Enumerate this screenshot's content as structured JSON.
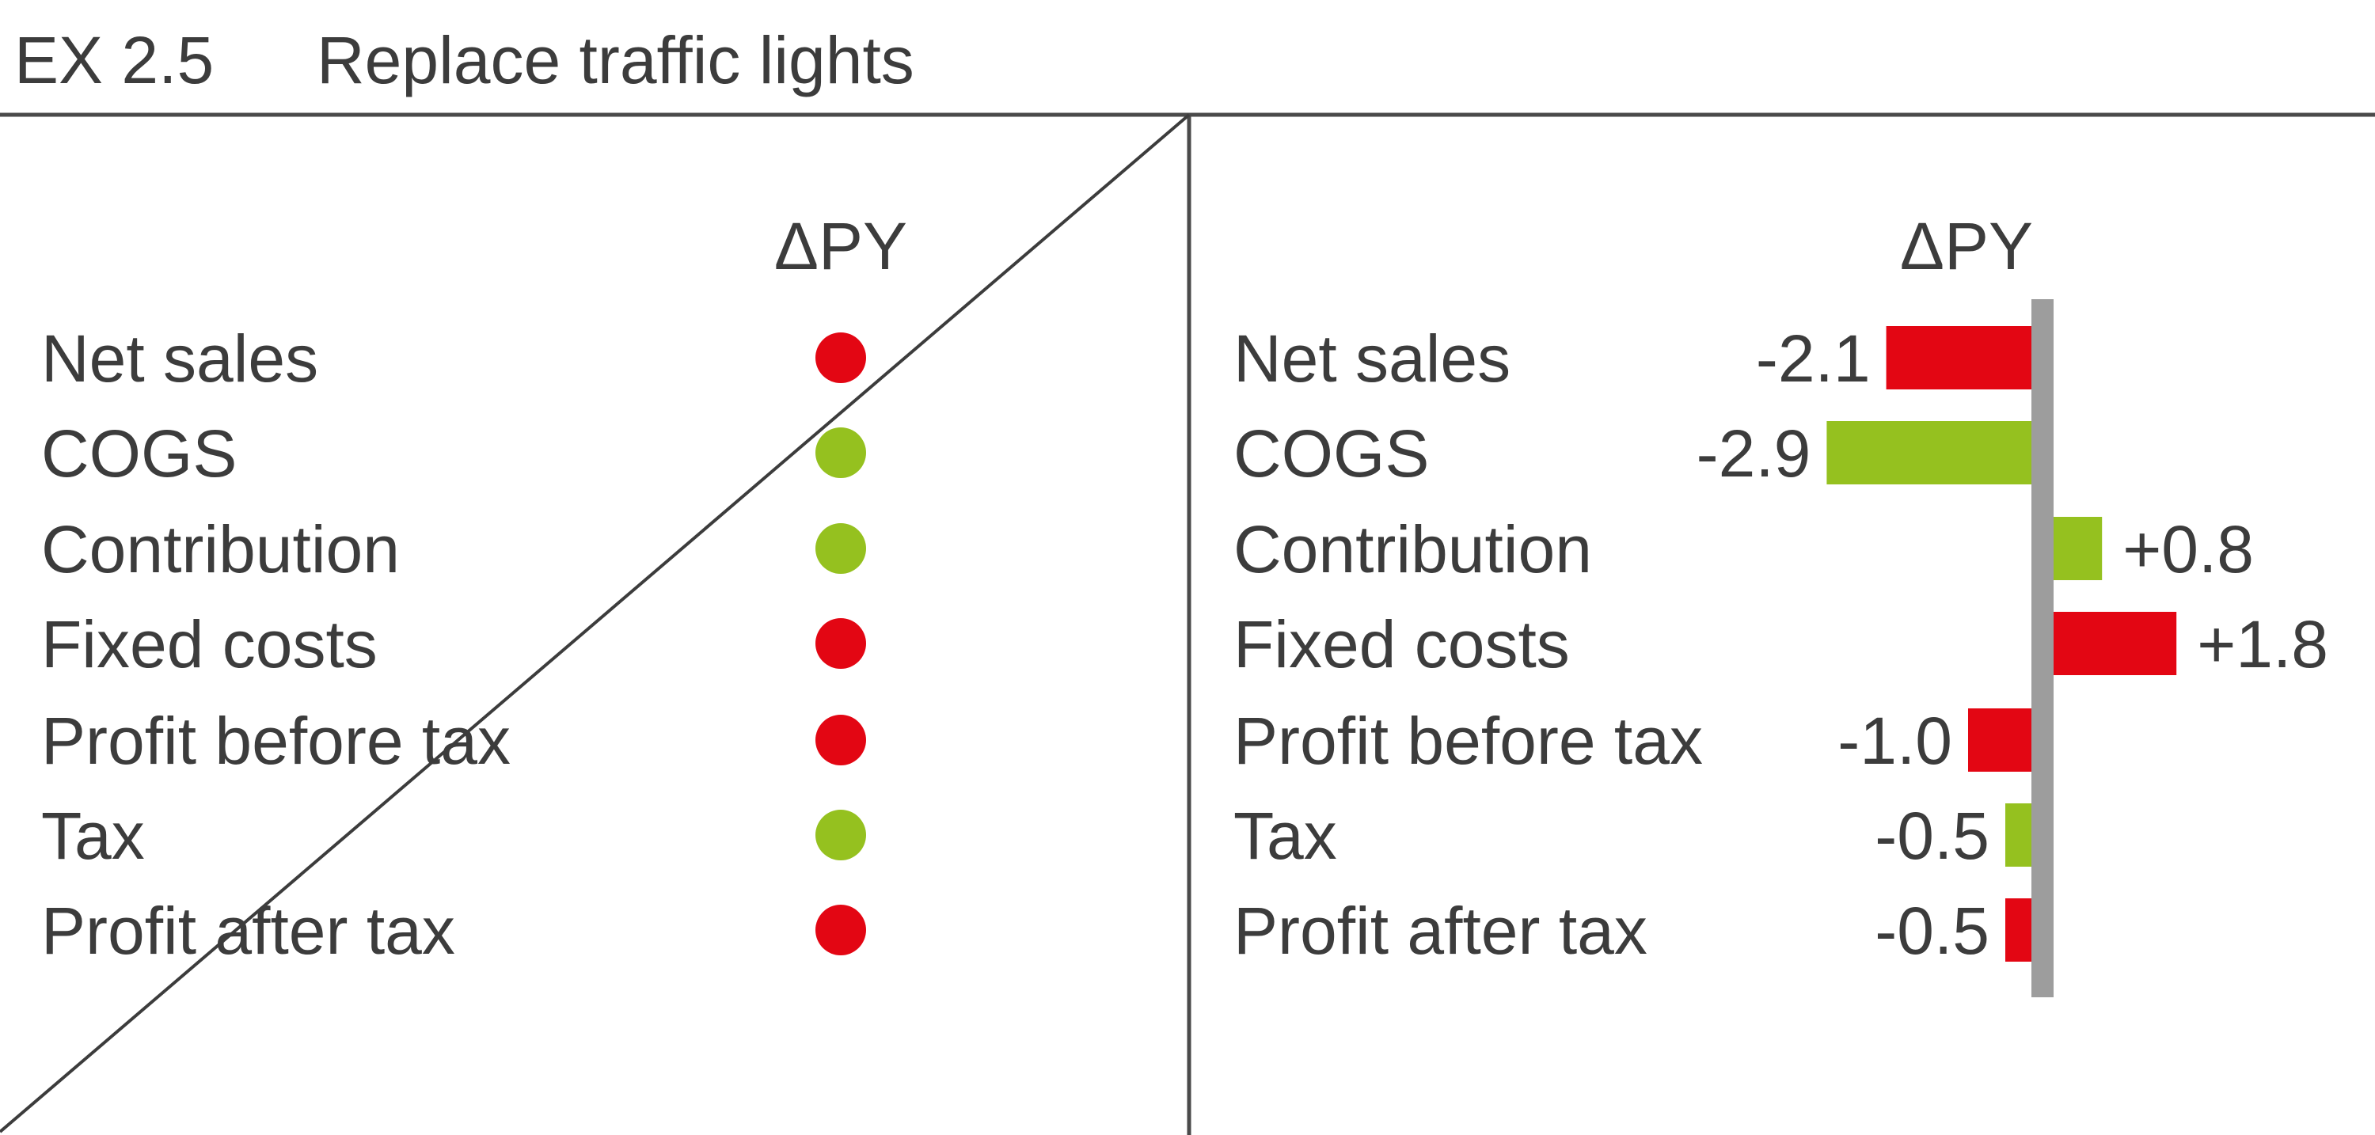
{
  "header": {
    "exhibit_id": "EX 2.5",
    "title": "Replace traffic lights"
  },
  "colors": {
    "negative": "#e30613",
    "positive": "#95c11f",
    "axis": "#9d9d9d",
    "text": "#3c3c3c",
    "rule": "#4a4a4a"
  },
  "chart_data": [
    {
      "type": "table",
      "column_header": "ΔPY",
      "rows": [
        "Net sales",
        "COGS",
        "Contribution",
        "Fixed costs",
        "Profit before tax",
        "Tax",
        "Profit after tax"
      ],
      "status": [
        "negative",
        "positive",
        "positive",
        "negative",
        "negative",
        "positive",
        "negative"
      ],
      "crossed_out": true
    },
    {
      "type": "bar",
      "orientation": "horizontal",
      "column_header": "ΔPY",
      "categories": [
        "Net sales",
        "COGS",
        "Contribution",
        "Fixed costs",
        "Profit before tax",
        "Tax",
        "Profit after tax"
      ],
      "values": [
        -2.1,
        -2.9,
        0.8,
        1.8,
        -1.0,
        -0.5,
        -0.5
      ],
      "labels": [
        "-2.1",
        "-2.9",
        "+0.8",
        "+1.8",
        "-1.0",
        "-0.5",
        "-0.5"
      ],
      "status": [
        "negative",
        "positive",
        "positive",
        "negative",
        "negative",
        "positive",
        "negative"
      ]
    }
  ]
}
